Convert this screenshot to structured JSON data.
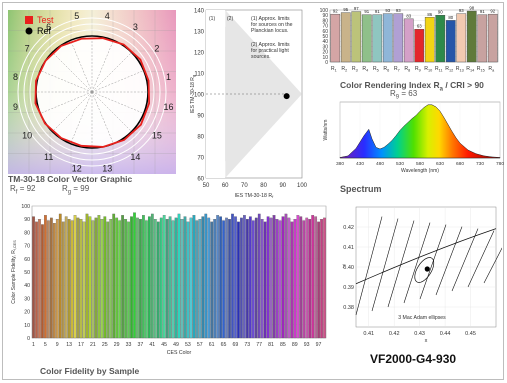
{
  "product_code": "VF2000-G4-930",
  "chart_data": [
    {
      "type": "vector",
      "title": "TM-30-18 Color Vector Graphic",
      "metrics": {
        "rf_label": "R",
        "rf_sub": "f",
        "rf_value": "= 92",
        "rg_label": "R",
        "rg_sub": "g",
        "rg_value": "= 99"
      },
      "legend": [
        {
          "name": "Test",
          "color": "#e8201c"
        },
        {
          "name": "Ref",
          "color": "#000000"
        }
      ],
      "hue_bins": [
        "1",
        "2",
        "3",
        "4",
        "5",
        "6",
        "7",
        "8",
        "9",
        "10",
        "11",
        "12",
        "13",
        "14",
        "15",
        "16"
      ],
      "test_radius": [
        1.03,
        1.04,
        1.02,
        0.98,
        0.97,
        0.99,
        1.0,
        1.02,
        1.03,
        1.01,
        0.99,
        0.98,
        1.0,
        1.03,
        1.05,
        1.04
      ]
    },
    {
      "type": "scatter",
      "xlabel": "IES TM-30-18 R",
      "xlabel_sub": "f",
      "ylabel": "IES TM-30-18 R",
      "ylabel_sub": "g",
      "xlim": [
        50,
        100
      ],
      "ylim": [
        60,
        140
      ],
      "x_ticks": [
        "50",
        "60",
        "70",
        "80",
        "90",
        "100"
      ],
      "y_ticks": [
        "60",
        "70",
        "80",
        "90",
        "100",
        "110",
        "120",
        "130",
        "140"
      ],
      "notes": [
        {
          "num": "(1)",
          "text": "(1) Approx. limits for sources on the Planckian locus."
        },
        {
          "num": "(2)",
          "text": "(2) Approx. limits for practical light sources."
        }
      ],
      "points": [
        {
          "x": 92,
          "y": 99
        }
      ]
    },
    {
      "type": "bar",
      "title": "Color Rendering Index",
      "cri_main": "R",
      "cri_sub": "a",
      "cri_condition": "/ CRI > 90",
      "r9_label": "R",
      "r9_sub": "9",
      "r9_value": "= 63",
      "ylim": [
        0,
        100
      ],
      "y_ticks": [
        "0",
        "10",
        "20",
        "30",
        "40",
        "50",
        "60",
        "70",
        "80",
        "90",
        "100"
      ],
      "categories": [
        "R1",
        "R2",
        "R3",
        "R4",
        "R5",
        "R6",
        "R7",
        "R8",
        "R9",
        "R10",
        "R11",
        "R12",
        "R13",
        "R14",
        "R15",
        "Ra"
      ],
      "values": [
        92,
        95,
        97,
        91,
        91,
        93,
        93,
        83,
        63,
        86,
        90,
        80,
        93,
        98,
        91,
        92
      ],
      "colors": [
        "#d4a5a5",
        "#c9b38a",
        "#bcc37a",
        "#8fc08a",
        "#8fc6c0",
        "#8fb6d8",
        "#b0a0d4",
        "#d4a0c8",
        "#e3262b",
        "#f2d414",
        "#2e8a4a",
        "#2656a8",
        "#f2c9b0",
        "#5e7a3a",
        "#c8a2a0",
        "#c8a2a0"
      ]
    },
    {
      "type": "line",
      "title": "Spectrum",
      "xlabel": "Wavelength (nm)",
      "ylabel": "Watts/nm",
      "xlim": [
        380,
        780
      ],
      "x_ticks": [
        "380",
        "430",
        "480",
        "530",
        "580",
        "630",
        "680",
        "730",
        "780"
      ],
      "x": [
        380,
        400,
        420,
        440,
        452,
        460,
        470,
        480,
        490,
        500,
        510,
        520,
        530,
        540,
        550,
        560,
        570,
        580,
        590,
        600,
        610,
        620,
        630,
        640,
        650,
        660,
        670,
        680,
        700,
        720,
        740,
        760,
        780
      ],
      "y": [
        0.01,
        0.04,
        0.18,
        0.42,
        0.54,
        0.36,
        0.2,
        0.17,
        0.2,
        0.26,
        0.33,
        0.42,
        0.52,
        0.6,
        0.67,
        0.74,
        0.8,
        0.88,
        0.95,
        1.0,
        1.0,
        0.96,
        0.88,
        0.76,
        0.63,
        0.5,
        0.38,
        0.28,
        0.15,
        0.08,
        0.04,
        0.02,
        0.01
      ]
    },
    {
      "type": "bar",
      "title": "Color Fidelity by Sample",
      "xlabel": "CES Color",
      "ylabel": "Color Sample Fidelity, R",
      "ylabel_sub": "f,CES",
      "ylim": [
        0,
        100
      ],
      "y_ticks": [
        "0",
        "10",
        "20",
        "30",
        "40",
        "50",
        "60",
        "70",
        "80",
        "90",
        "100"
      ],
      "x_ticks": [
        "1",
        "5",
        "9",
        "13",
        "17",
        "21",
        "25",
        "29",
        "33",
        "37",
        "41",
        "45",
        "49",
        "53",
        "57",
        "61",
        "65",
        "69",
        "73",
        "77",
        "81",
        "85",
        "89",
        "93",
        "97"
      ],
      "values": [
        92,
        88,
        90,
        86,
        93,
        89,
        91,
        87,
        90,
        94,
        88,
        92,
        90,
        89,
        93,
        91,
        90,
        88,
        94,
        92,
        89,
        91,
        93,
        90,
        92,
        88,
        90,
        94,
        91,
        89,
        93,
        90,
        88,
        92,
        95,
        91,
        90,
        93,
        89,
        92,
        94,
        90,
        88,
        91,
        93,
        90,
        92,
        89,
        91,
        94,
        90,
        92,
        88,
        91,
        93,
        89,
        90,
        92,
        94,
        91,
        88,
        90,
        93,
        92,
        89,
        91,
        90,
        94,
        92,
        88,
        91,
        93,
        90,
        92,
        89,
        91,
        94,
        90,
        88,
        92,
        91,
        93,
        90,
        89,
        92,
        94,
        91,
        88,
        90,
        93,
        92,
        89,
        91,
        90,
        93,
        92,
        88,
        90,
        91
      ]
    },
    {
      "type": "scatter",
      "xlabel": "x",
      "ylabel": "y",
      "xlim": [
        0.405,
        0.46
      ],
      "ylim": [
        0.37,
        0.43
      ],
      "x_ticks": [
        "0.41",
        "0.42",
        "0.43",
        "0.44",
        "0.45"
      ],
      "y_ticks": [
        "0.38",
        "0.39",
        "0.40",
        "0.41",
        "0.42"
      ],
      "annotation": "3 Mac Adam ellipses",
      "points": [
        {
          "x": 0.433,
          "y": 0.399
        }
      ]
    }
  ]
}
